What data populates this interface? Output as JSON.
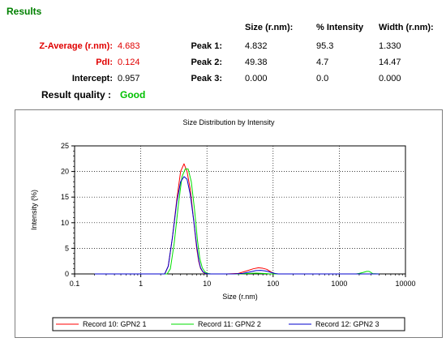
{
  "results": {
    "heading": "Results",
    "column_headers": {
      "size": "Size (r.nm):",
      "intensity": "% Intensity",
      "width": "Width (r.nm):"
    },
    "summary": [
      {
        "label": "Z-Average (r.nm):",
        "value": "4.683",
        "color": "#e00000"
      },
      {
        "label": "PdI:",
        "value": "0.124",
        "color": "#e00000"
      },
      {
        "label": "Intercept:",
        "value": "0.957",
        "color": "#000000"
      }
    ],
    "peaks": [
      {
        "label": "Peak 1:",
        "size": "4.832",
        "intensity": "95.3",
        "width": "1.330"
      },
      {
        "label": "Peak 2:",
        "size": "49.38",
        "intensity": "4.7",
        "width": "14.47"
      },
      {
        "label": "Peak 3:",
        "size": "0.000",
        "intensity": "0.0",
        "width": "0.000"
      }
    ],
    "quality_label": "Result quality :",
    "quality_value": "Good"
  },
  "chart_data": {
    "type": "line",
    "title": "Size Distribution by Intensity",
    "xlabel": "Size (r.nm)",
    "ylabel": "Intensity (%)",
    "xscale": "log",
    "xlim": [
      0.1,
      10000
    ],
    "ylim": [
      0,
      25
    ],
    "xticks": [
      0.1,
      1,
      10,
      100,
      1000,
      10000
    ],
    "xtick_labels": [
      "0.1",
      "1",
      "10",
      "100",
      "1000",
      "10000"
    ],
    "yticks": [
      0,
      5,
      10,
      15,
      20,
      25
    ],
    "ytick_labels": [
      "0",
      "5",
      "10",
      "15",
      "20",
      "25"
    ],
    "grid": "dotted",
    "legend_position": "bottom",
    "series": [
      {
        "name": "Record 10: GPN2 1",
        "color": "#ff0000",
        "x": [
          0.2,
          1,
          2.3,
          2.6,
          3.0,
          3.5,
          4.0,
          4.5,
          5.0,
          5.6,
          6.3,
          7.0,
          7.5,
          8.0,
          8.7,
          9.5,
          10.5,
          12,
          20,
          30,
          40,
          50,
          60,
          70,
          80,
          90,
          100,
          110,
          1000,
          4000
        ],
        "y": [
          0,
          0,
          0,
          1.5,
          7.0,
          14.5,
          20.0,
          21.5,
          20.0,
          16.5,
          10.5,
          5.0,
          2.5,
          1.1,
          0.35,
          0.1,
          0,
          0,
          0,
          0.1,
          0.6,
          1.0,
          1.2,
          1.1,
          0.9,
          0.5,
          0.15,
          0,
          0,
          0
        ]
      },
      {
        "name": "Record 11: GPN2 2",
        "color": "#00dd00",
        "x": [
          0.2,
          1,
          2.5,
          2.8,
          3.2,
          3.7,
          4.2,
          4.7,
          5.2,
          5.8,
          6.5,
          7.2,
          7.8,
          8.5,
          9.3,
          10.2,
          11.5,
          12,
          30,
          45,
          55,
          70,
          80,
          90,
          100,
          1800,
          2000,
          2300,
          2600,
          2800,
          3000,
          3200,
          4000
        ],
        "y": [
          0,
          0,
          0,
          1.0,
          6.0,
          13.5,
          19.0,
          20.5,
          20.5,
          18.0,
          12.5,
          6.5,
          3.0,
          1.2,
          0.4,
          0.1,
          0,
          0,
          0,
          0.1,
          0.15,
          0.1,
          0.05,
          0,
          0,
          0,
          0.1,
          0.3,
          0.5,
          0.5,
          0.3,
          0.05,
          0
        ]
      },
      {
        "name": "Record 12: GPN2 3",
        "color": "#0000cc",
        "x": [
          0.2,
          1,
          2.3,
          2.6,
          3.0,
          3.5,
          4.0,
          4.5,
          5.0,
          5.6,
          6.3,
          7.0,
          7.5,
          8.0,
          8.7,
          9.5,
          10.5,
          12,
          25,
          35,
          45,
          55,
          65,
          75,
          85,
          95,
          110,
          120,
          1000,
          4000
        ],
        "y": [
          0,
          0,
          0,
          1.5,
          7.0,
          14.0,
          18.0,
          19.0,
          18.5,
          15.5,
          10.5,
          5.5,
          2.8,
          1.2,
          0.4,
          0.1,
          0,
          0,
          0,
          0.1,
          0.4,
          0.65,
          0.7,
          0.6,
          0.45,
          0.25,
          0.05,
          0,
          0,
          0
        ]
      }
    ]
  }
}
